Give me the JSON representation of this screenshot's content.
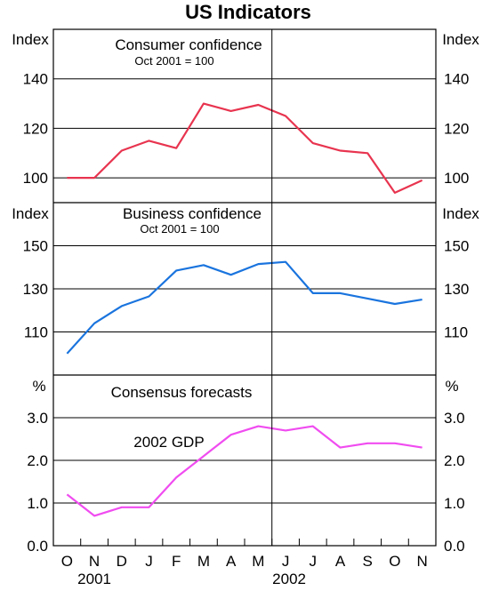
{
  "title": "US Indicators",
  "x_labels": [
    "O",
    "N",
    "D",
    "J",
    "F",
    "M",
    "A",
    "M",
    "J",
    "J",
    "A",
    "S",
    "O",
    "N"
  ],
  "year_labels": [
    "2001",
    "2002"
  ],
  "chart_data": [
    {
      "type": "line",
      "title": "Consumer confidence",
      "subtitle": "Oct 2001 = 100",
      "unit_left": "Index",
      "unit_right": "Index",
      "ylim": [
        90,
        160
      ],
      "yticks": [
        100,
        120,
        140
      ],
      "color": "#e8344f",
      "series": [
        {
          "values": [
            100,
            100,
            111,
            115,
            112,
            130,
            127,
            129.5,
            125,
            114,
            111,
            110,
            94,
            99
          ]
        }
      ]
    },
    {
      "type": "line",
      "title": "Business confidence",
      "subtitle": "Oct 2001 = 100",
      "unit_left": "Index",
      "unit_right": "Index",
      "ylim": [
        90,
        170
      ],
      "yticks": [
        110,
        130,
        150
      ],
      "color": "#1a74de",
      "series": [
        {
          "values": [
            100,
            114,
            122,
            126.5,
            138.5,
            141,
            136.5,
            141.5,
            142.5,
            128,
            128,
            125.5,
            123,
            125
          ]
        }
      ]
    },
    {
      "type": "line",
      "title": "Consensus forecasts",
      "unit_left": "%",
      "unit_right": "%",
      "ylim": [
        0,
        4
      ],
      "yticks": [
        0.0,
        1.0,
        2.0,
        3.0
      ],
      "ytick_labels": [
        "0.0",
        "1.0",
        "2.0",
        "3.0"
      ],
      "color": "#f04cf0",
      "series": [
        {
          "name": "2002 GDP",
          "values": [
            1.2,
            0.7,
            0.9,
            0.9,
            1.6,
            2.1,
            2.6,
            2.8,
            2.7,
            2.8,
            2.3,
            2.4,
            2.4,
            2.3
          ]
        }
      ]
    }
  ]
}
